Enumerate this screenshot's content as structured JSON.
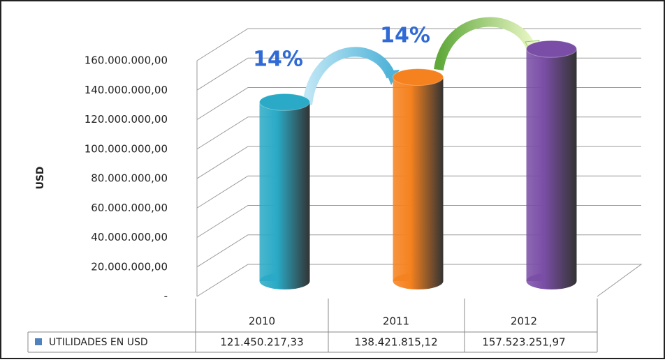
{
  "chart_data": {
    "type": "bar",
    "y_label": "USD",
    "legend_label": "UTILIDADES EN USD",
    "legend_color": "#4f81bd",
    "categories": [
      "2010",
      "2011",
      "2012"
    ],
    "values": [
      121450217.33,
      138421815.12,
      157523251.97
    ],
    "value_labels": [
      "121.450.217,33",
      "138.421.815,12",
      "157.523.251,97"
    ],
    "colors": [
      "#2aaac6",
      "#f5821f",
      "#7a4ea6"
    ],
    "annotations": [
      "14%",
      "14%"
    ],
    "ylim": [
      0,
      160000000
    ],
    "yticks": [
      {
        "value": 0,
        "label": "-"
      },
      {
        "value": 20000000,
        "label": "20.000.000,00"
      },
      {
        "value": 40000000,
        "label": "40.000.000,00"
      },
      {
        "value": 60000000,
        "label": "60.000.000,00"
      },
      {
        "value": 80000000,
        "label": "80.000.000,00"
      },
      {
        "value": 100000000,
        "label": "100.000.000,00"
      },
      {
        "value": 120000000,
        "label": "120.000.000,00"
      },
      {
        "value": 140000000,
        "label": "140.000.000,00"
      },
      {
        "value": 160000000,
        "label": "160.000.000,00"
      }
    ],
    "grid": true
  }
}
